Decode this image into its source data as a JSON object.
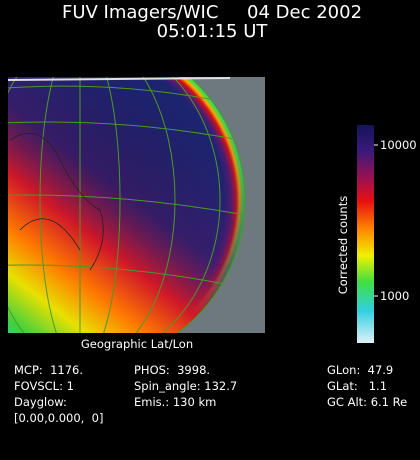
{
  "header": {
    "title": "FUV Imagers/WIC     04 Dec 2002",
    "time": "05:01:15 UT"
  },
  "image": {
    "caption": "Geographic Lat/Lon"
  },
  "colorbar": {
    "label": "Corrected counts",
    "ticks": [
      "10000",
      "1000"
    ]
  },
  "info": {
    "col1": [
      "MCP:  1176.",
      "FOVSCL: 1",
      "Dayglow:",
      "[0.00,0.000,  0]"
    ],
    "col2": [
      "PHOS:  3998.",
      "Spin_angle: 132.7",
      "Emis.: 130 km"
    ],
    "col3": [
      "GLon:  47.9",
      "GLat:   1.1",
      "GC Alt: 6.1 Re"
    ]
  }
}
